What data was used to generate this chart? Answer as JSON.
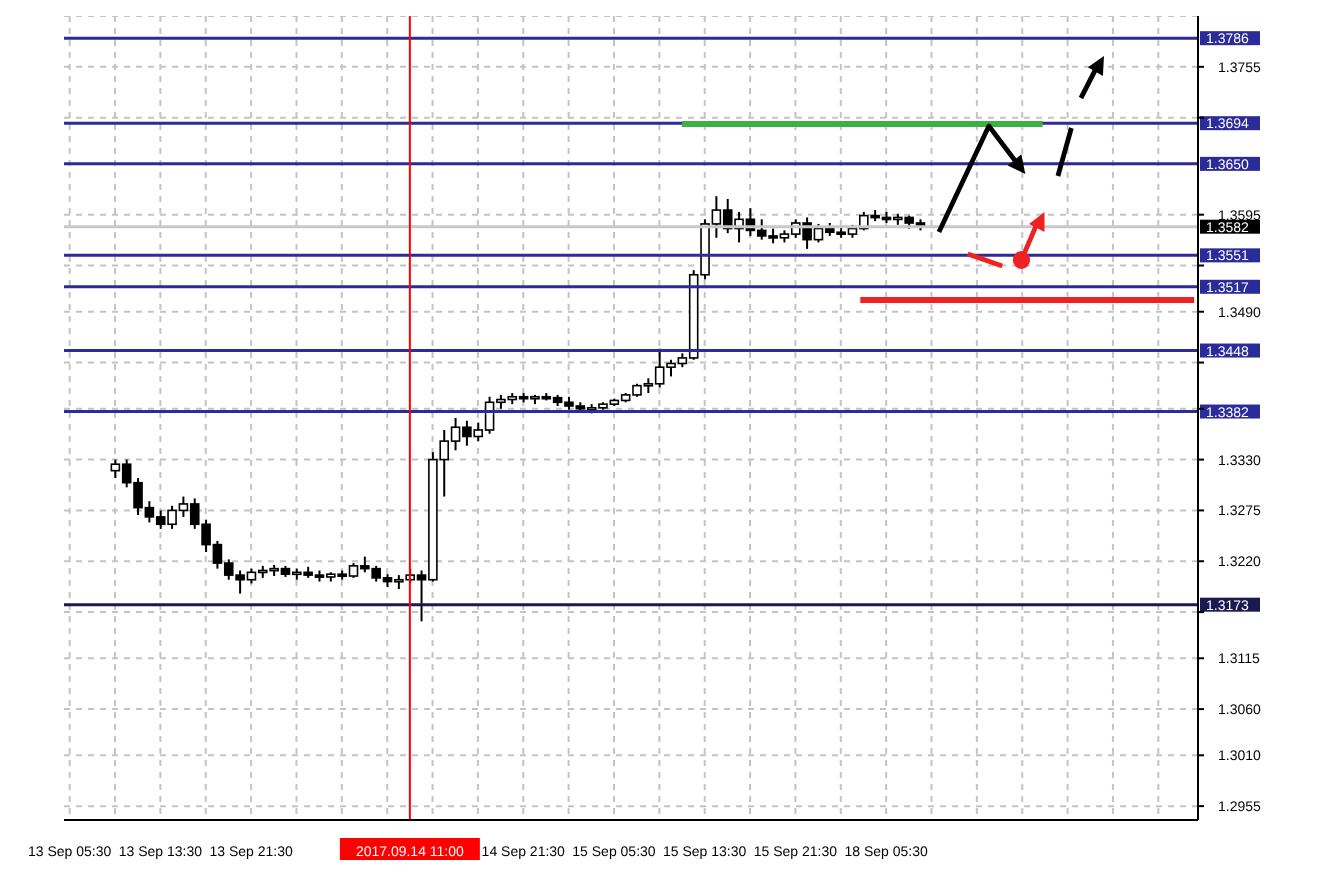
{
  "chart_data": {
    "type": "candlestick",
    "categories": [
      "13 Sep 05:30",
      null,
      null,
      null,
      null,
      null,
      null,
      null,
      "13 Sep 13:30",
      null,
      null,
      null,
      null,
      null,
      null,
      null,
      "13 Sep 21:30",
      null,
      null,
      null,
      null,
      null,
      null,
      null,
      null,
      null,
      null,
      null,
      null,
      null,
      "2017.09.14 11:00",
      null,
      null,
      null,
      null,
      null,
      null,
      null,
      null,
      null,
      "14 Sep 21:30",
      null,
      null,
      null,
      null,
      null,
      null,
      null,
      "15 Sep 05:30",
      null,
      null,
      null,
      null,
      null,
      null,
      null,
      "15 Sep 13:30",
      null,
      null,
      null,
      null,
      null,
      null,
      null,
      "15 Sep 21:30",
      null,
      null,
      null,
      null,
      null,
      null,
      null,
      "18 Sep 05:30",
      null,
      null,
      null,
      null,
      null,
      null,
      null,
      null,
      null,
      null,
      null,
      null,
      null,
      null,
      null,
      null,
      null,
      null,
      null,
      null,
      null,
      null,
      null,
      null,
      null,
      null,
      null
    ],
    "ohlc": [
      null,
      null,
      null,
      null,
      [
        1.3318,
        1.333,
        1.331,
        1.3325
      ],
      [
        1.3325,
        1.333,
        1.33,
        1.3305
      ],
      [
        1.3305,
        1.331,
        1.327,
        1.3278
      ],
      [
        1.3278,
        1.3285,
        1.3262,
        1.3268
      ],
      [
        1.3268,
        1.3275,
        1.3255,
        1.326
      ],
      [
        1.326,
        1.328,
        1.3255,
        1.3275
      ],
      [
        1.3275,
        1.329,
        1.3268,
        1.3282
      ],
      [
        1.3282,
        1.3288,
        1.3255,
        1.326
      ],
      [
        1.326,
        1.3265,
        1.323,
        1.3238
      ],
      [
        1.3238,
        1.3242,
        1.3212,
        1.3218
      ],
      [
        1.3218,
        1.3222,
        1.32,
        1.3205
      ],
      [
        1.3205,
        1.321,
        1.3185,
        1.32
      ],
      [
        1.32,
        1.3212,
        1.3196,
        1.3208
      ],
      [
        1.3208,
        1.3215,
        1.3202,
        1.321
      ],
      [
        1.321,
        1.3216,
        1.3204,
        1.3212
      ],
      [
        1.3212,
        1.3215,
        1.3203,
        1.3206
      ],
      [
        1.3206,
        1.3212,
        1.32,
        1.3208
      ],
      [
        1.3208,
        1.3214,
        1.3202,
        1.3205
      ],
      [
        1.3205,
        1.321,
        1.3198,
        1.3203
      ],
      [
        1.3203,
        1.3208,
        1.3198,
        1.3206
      ],
      [
        1.3206,
        1.321,
        1.32,
        1.3204
      ],
      [
        1.3204,
        1.3218,
        1.3202,
        1.3215
      ],
      [
        1.3215,
        1.3225,
        1.3208,
        1.3212
      ],
      [
        1.3212,
        1.3215,
        1.3198,
        1.3202
      ],
      [
        1.3202,
        1.3206,
        1.3192,
        1.3198
      ],
      [
        1.3198,
        1.3205,
        1.319,
        1.32
      ],
      [
        1.32,
        1.3212,
        1.3196,
        1.3205
      ],
      [
        1.3205,
        1.321,
        1.3155,
        1.32
      ],
      [
        1.32,
        1.3338,
        1.3198,
        1.333
      ],
      [
        1.333,
        1.3362,
        1.329,
        1.335
      ],
      [
        1.335,
        1.3375,
        1.334,
        1.3365
      ],
      [
        1.3365,
        1.3372,
        1.3345,
        1.3355
      ],
      [
        1.3355,
        1.337,
        1.335,
        1.3362
      ],
      [
        1.3362,
        1.3398,
        1.3358,
        1.3392
      ],
      [
        1.3392,
        1.34,
        1.3385,
        1.3395
      ],
      [
        1.3395,
        1.3402,
        1.339,
        1.3398
      ],
      [
        1.3398,
        1.3402,
        1.3392,
        1.3396
      ],
      [
        1.3396,
        1.34,
        1.339,
        1.3398
      ],
      [
        1.3398,
        1.3402,
        1.3394,
        1.3397
      ],
      [
        1.3397,
        1.34,
        1.3388,
        1.3392
      ],
      [
        1.3392,
        1.3398,
        1.3384,
        1.3388
      ],
      [
        1.3388,
        1.3392,
        1.3382,
        1.3385
      ],
      [
        1.3385,
        1.339,
        1.338,
        1.3386
      ],
      [
        1.3386,
        1.3392,
        1.3384,
        1.339
      ],
      [
        1.339,
        1.3396,
        1.3388,
        1.3394
      ],
      [
        1.3394,
        1.3402,
        1.3392,
        1.34
      ],
      [
        1.34,
        1.3412,
        1.3398,
        1.341
      ],
      [
        1.341,
        1.3418,
        1.3402,
        1.3412
      ],
      [
        1.3412,
        1.345,
        1.3408,
        1.343
      ],
      [
        1.343,
        1.3438,
        1.342,
        1.3434
      ],
      [
        1.3434,
        1.3445,
        1.343,
        1.344
      ],
      [
        1.344,
        1.3535,
        1.3438,
        1.353
      ],
      [
        1.353,
        1.359,
        1.3525,
        1.3585
      ],
      [
        1.3585,
        1.3615,
        1.357,
        1.36
      ],
      [
        1.36,
        1.3612,
        1.3575,
        1.358
      ],
      [
        1.358,
        1.3598,
        1.3565,
        1.359
      ],
      [
        1.359,
        1.3602,
        1.3572,
        1.3578
      ],
      [
        1.3578,
        1.359,
        1.3568,
        1.3572
      ],
      [
        1.3572,
        1.358,
        1.3564,
        1.357
      ],
      [
        1.357,
        1.3578,
        1.3565,
        1.3574
      ],
      [
        1.3574,
        1.359,
        1.357,
        1.3586
      ],
      [
        1.3586,
        1.3592,
        1.3558,
        1.3568
      ],
      [
        1.3568,
        1.3585,
        1.3565,
        1.358
      ],
      [
        1.358,
        1.3586,
        1.3572,
        1.3576
      ],
      [
        1.3576,
        1.3582,
        1.357,
        1.3574
      ],
      [
        1.3574,
        1.3584,
        1.357,
        1.358
      ],
      [
        1.358,
        1.3598,
        1.3578,
        1.3594
      ],
      [
        1.3594,
        1.36,
        1.3588,
        1.3592
      ],
      [
        1.3592,
        1.3598,
        1.3586,
        1.359
      ],
      [
        1.359,
        1.3596,
        1.3584,
        1.3592
      ],
      [
        1.3592,
        1.3594,
        1.358,
        1.3586
      ],
      [
        1.3586,
        1.359,
        1.3578,
        1.3582
      ],
      null,
      null,
      null,
      null,
      null,
      null,
      null,
      null,
      null,
      null,
      null,
      null,
      null,
      null,
      null,
      null,
      null,
      null,
      null,
      null,
      null,
      null,
      null,
      null
    ],
    "ylim": [
      1.294,
      1.381
    ],
    "yticks": [
      1.2955,
      {
        "value": 1.301,
        "label": "1.3010"
      },
      {
        "value": 1.306,
        "label": "1.3060"
      },
      1.3115,
      {
        "value": 1.3165,
        "label": null
      },
      {
        "value": 1.322,
        "label": "1.3220"
      },
      1.3275,
      {
        "value": 1.333,
        "label": "1.3330"
      },
      {
        "value": 1.3385,
        "label": null
      },
      {
        "value": 1.3435,
        "label": null
      },
      {
        "value": 1.349,
        "label": "1.3490"
      },
      {
        "value": 1.354,
        "label": null
      },
      1.3595,
      {
        "value": 1.37,
        "label": null
      },
      1.3755
    ],
    "grid": true,
    "ref_lines": [
      {
        "axis": "y",
        "value": 1.3786,
        "label": "1.3786",
        "color": "#2b2b9a"
      },
      {
        "axis": "y",
        "value": 1.3694,
        "label": "1.3694",
        "color": "#2b2b9a"
      },
      {
        "axis": "y",
        "value": 1.365,
        "label": "1.3650",
        "color": "#2b2b9a"
      },
      {
        "axis": "y",
        "value": 1.3582,
        "label": "1.3582",
        "color": "#c8c8c8"
      },
      {
        "axis": "y",
        "value": 1.3551,
        "label": "1.3551",
        "color": "#2b2b9a"
      },
      {
        "axis": "y",
        "value": 1.3517,
        "label": "1.3517",
        "color": "#2b2b9a"
      },
      {
        "axis": "y",
        "value": 1.3448,
        "label": "1.3448",
        "color": "#2b2b9a"
      },
      {
        "axis": "y",
        "value": 1.3382,
        "label": "1.3382",
        "color": "#2b2b9a"
      },
      {
        "axis": "y",
        "value": 1.3173,
        "label": "1.3173",
        "color": "#1a1a50"
      },
      {
        "axis": "x",
        "value": "2017.09.14 11:00",
        "color": "#ff0000"
      }
    ]
  }
}
